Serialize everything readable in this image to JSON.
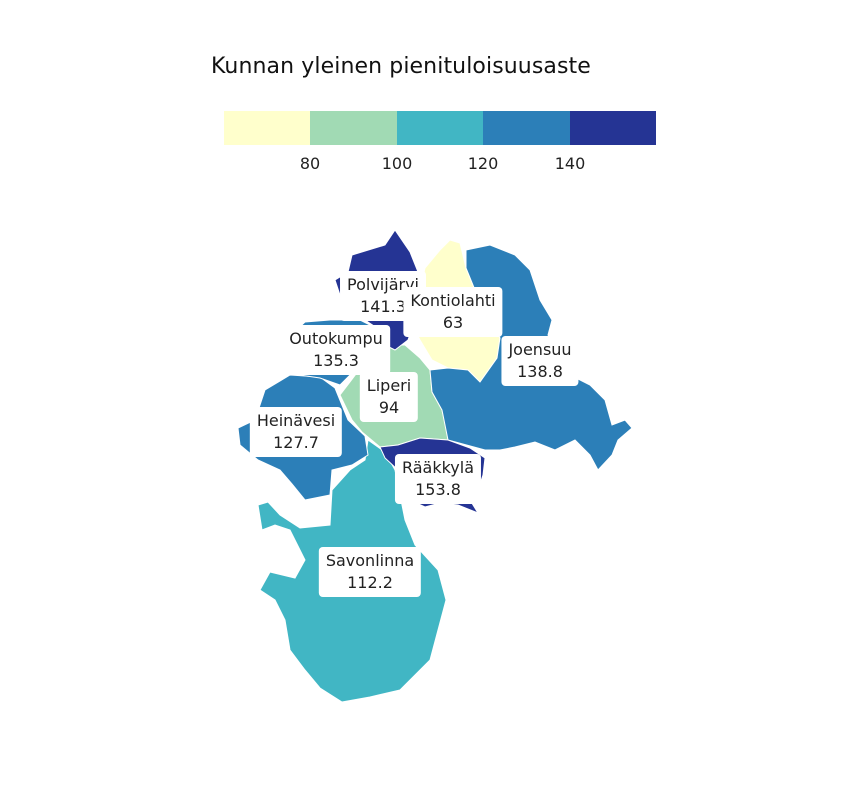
{
  "map": {
    "title": "Kunnan yleinen pienituloisuusaste",
    "legend": {
      "colors": [
        "#ffffcc",
        "#a1dab4",
        "#41b6c4",
        "#2c7fb8",
        "#253494"
      ],
      "ticks": [
        "80",
        "100",
        "120",
        "140"
      ]
    },
    "regions": [
      {
        "name": "Polvijärvi",
        "value": "141.3",
        "color": "#253494"
      },
      {
        "name": "Kontiolahti",
        "value": "63",
        "color": "#ffffcc"
      },
      {
        "name": "Outokumpu",
        "value": "135.3",
        "color": "#2c7fb8"
      },
      {
        "name": "Liperi",
        "value": "94",
        "color": "#a1dab4"
      },
      {
        "name": "Joensuu",
        "value": "138.8",
        "color": "#2c7fb8"
      },
      {
        "name": "Heinävesi",
        "value": "127.7",
        "color": "#2c7fb8"
      },
      {
        "name": "Rääkkylä",
        "value": "153.8",
        "color": "#253494"
      },
      {
        "name": "Savonlinna",
        "value": "112.2",
        "color": "#41b6c4"
      }
    ]
  }
}
